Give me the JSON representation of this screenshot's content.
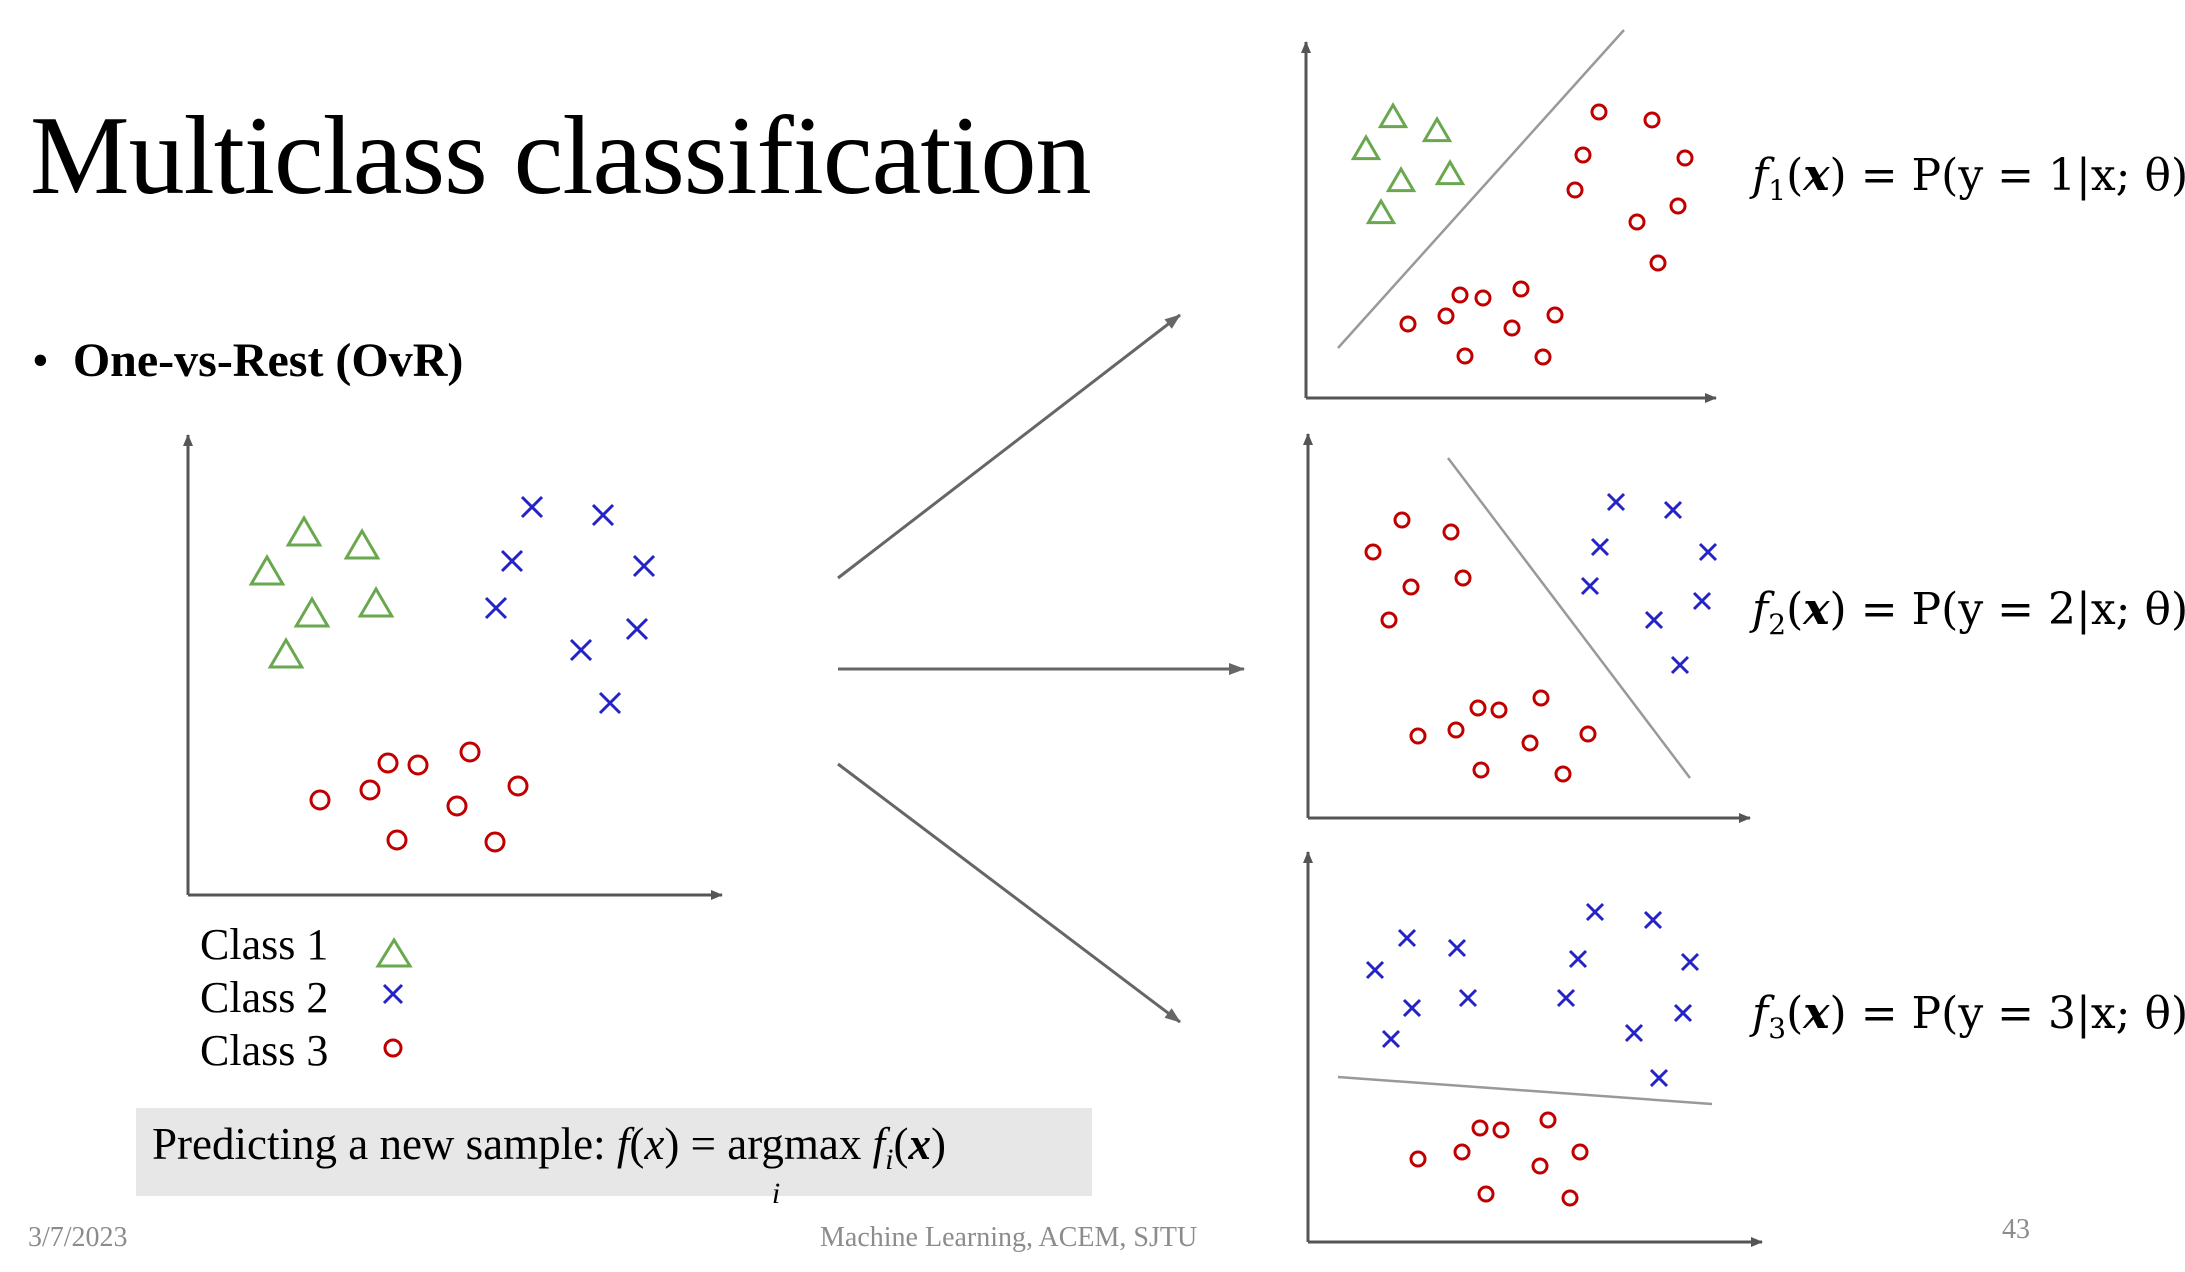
{
  "title": "Multiclass classification",
  "bullet": {
    "symbol": "•",
    "text": "One-vs-Rest (OvR)"
  },
  "legend": [
    {
      "label": "Class 1",
      "marker": "triangle",
      "color": "#6aa84f"
    },
    {
      "label": "Class 2",
      "marker": "cross",
      "color": "#2323c8"
    },
    {
      "label": "Class 3",
      "marker": "circle",
      "color": "#c00000"
    }
  ],
  "prediction": {
    "prefix": "Predicting a new sample: ",
    "f": "f",
    "x": "x",
    "eq": " = argmax ",
    "fi": "f",
    "i": "i",
    "xbold": "x",
    "under": "i"
  },
  "formulas": [
    {
      "f": "f",
      "sub": "1",
      "rhs": " = P(y = 1|x; θ)"
    },
    {
      "f": "f",
      "sub": "2",
      "rhs": " = P(y = 2|x; θ)"
    },
    {
      "f": "f",
      "sub": "3",
      "rhs": " = P(y = 3|x; θ)"
    }
  ],
  "footer": {
    "date": "3/7/2023",
    "course": "Machine Learning, ACEM, SJTU",
    "page": "43"
  },
  "colors": {
    "class1": "#6aa84f",
    "class2": "#2323c8",
    "class3": "#c00000",
    "axis": "#555555",
    "arrow": "#666666",
    "boundary": "#999999"
  }
}
